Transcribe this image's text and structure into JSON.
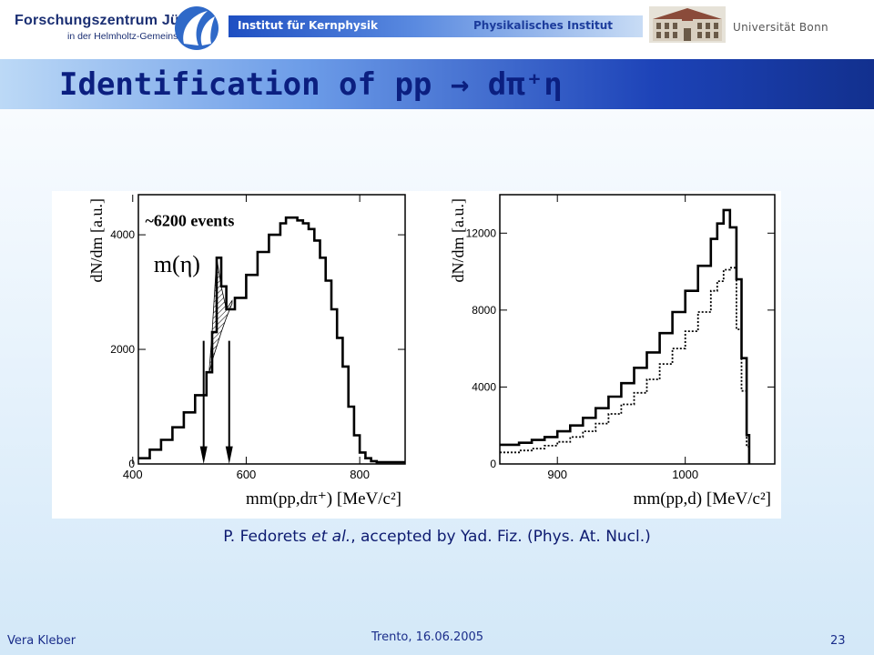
{
  "header": {
    "org_name": "Forschungszentrum Jülich",
    "org_sub": "in der Helmholtz-Gemeinschaft",
    "institute_left": "Institut für Kernphysik",
    "institute_right": "Physikalisches Institut",
    "university": "Universität Bonn"
  },
  "slide": {
    "title": "Identification of pp → dπ⁺η"
  },
  "chart_data": [
    {
      "type": "line",
      "ylabel": "dN/dm   [a.u.]",
      "xlabel": "mm(pp,dπ⁺)   [MeV/c²]",
      "xlim": [
        410,
        880
      ],
      "ylim": [
        0,
        4700
      ],
      "x_ticks": [
        400,
        600,
        800
      ],
      "y_ticks": [
        0,
        2000,
        4000
      ],
      "annotation_events": "~6200 events",
      "annotation_peak": "m(η)",
      "series": [
        {
          "x": [
            410,
            430,
            450,
            470,
            490,
            510,
            530,
            540,
            548,
            556,
            565,
            580,
            600,
            620,
            640,
            660,
            670,
            680,
            690,
            700,
            710,
            720,
            730,
            740,
            750,
            760,
            770,
            780,
            790,
            800,
            810,
            820,
            830,
            880
          ],
          "values": [
            100,
            250,
            420,
            640,
            900,
            1200,
            1600,
            2300,
            3600,
            3100,
            2700,
            2900,
            3300,
            3700,
            4000,
            4200,
            4300,
            4300,
            4250,
            4200,
            4100,
            3900,
            3600,
            3200,
            2700,
            2200,
            1700,
            1000,
            500,
            200,
            100,
            50,
            30,
            30
          ]
        }
      ]
    },
    {
      "type": "line",
      "ylabel": "dN/dm   [a.u.]",
      "xlabel": "mm(pp,d)   [MeV/c²]",
      "xlim": [
        855,
        1070
      ],
      "ylim": [
        0,
        14000
      ],
      "x_ticks": [
        900,
        1000
      ],
      "y_ticks": [
        0,
        4000,
        8000,
        12000
      ],
      "series": [
        {
          "x": [
            855,
            870,
            880,
            890,
            900,
            910,
            920,
            930,
            940,
            950,
            960,
            970,
            980,
            990,
            1000,
            1010,
            1020,
            1025,
            1030,
            1035,
            1040,
            1044,
            1048,
            1050
          ],
          "values": [
            1000,
            1100,
            1250,
            1400,
            1700,
            2000,
            2400,
            2900,
            3500,
            4200,
            5000,
            5800,
            6800,
            7900,
            9000,
            10300,
            11700,
            12500,
            13200,
            12300,
            9600,
            5500,
            1500,
            0
          ]
        },
        {
          "x": [
            855,
            870,
            880,
            890,
            900,
            910,
            920,
            930,
            940,
            950,
            960,
            970,
            980,
            990,
            1000,
            1010,
            1020,
            1025,
            1030,
            1035,
            1040,
            1044,
            1048,
            1050
          ],
          "values": [
            600,
            700,
            800,
            950,
            1150,
            1400,
            1700,
            2100,
            2600,
            3100,
            3700,
            4400,
            5200,
            6000,
            6900,
            7900,
            9000,
            9500,
            10100,
            10200,
            7000,
            3800,
            900,
            0
          ]
        }
      ]
    }
  ],
  "caption": {
    "authors": "P. Fedorets",
    "etal": "et al.",
    "rest": ", accepted by Yad. Fiz. (Phys. At. Nucl.)"
  },
  "footer": {
    "presenter": "Vera Kleber",
    "event": "Trento, 16.06.2005",
    "page": "23"
  }
}
